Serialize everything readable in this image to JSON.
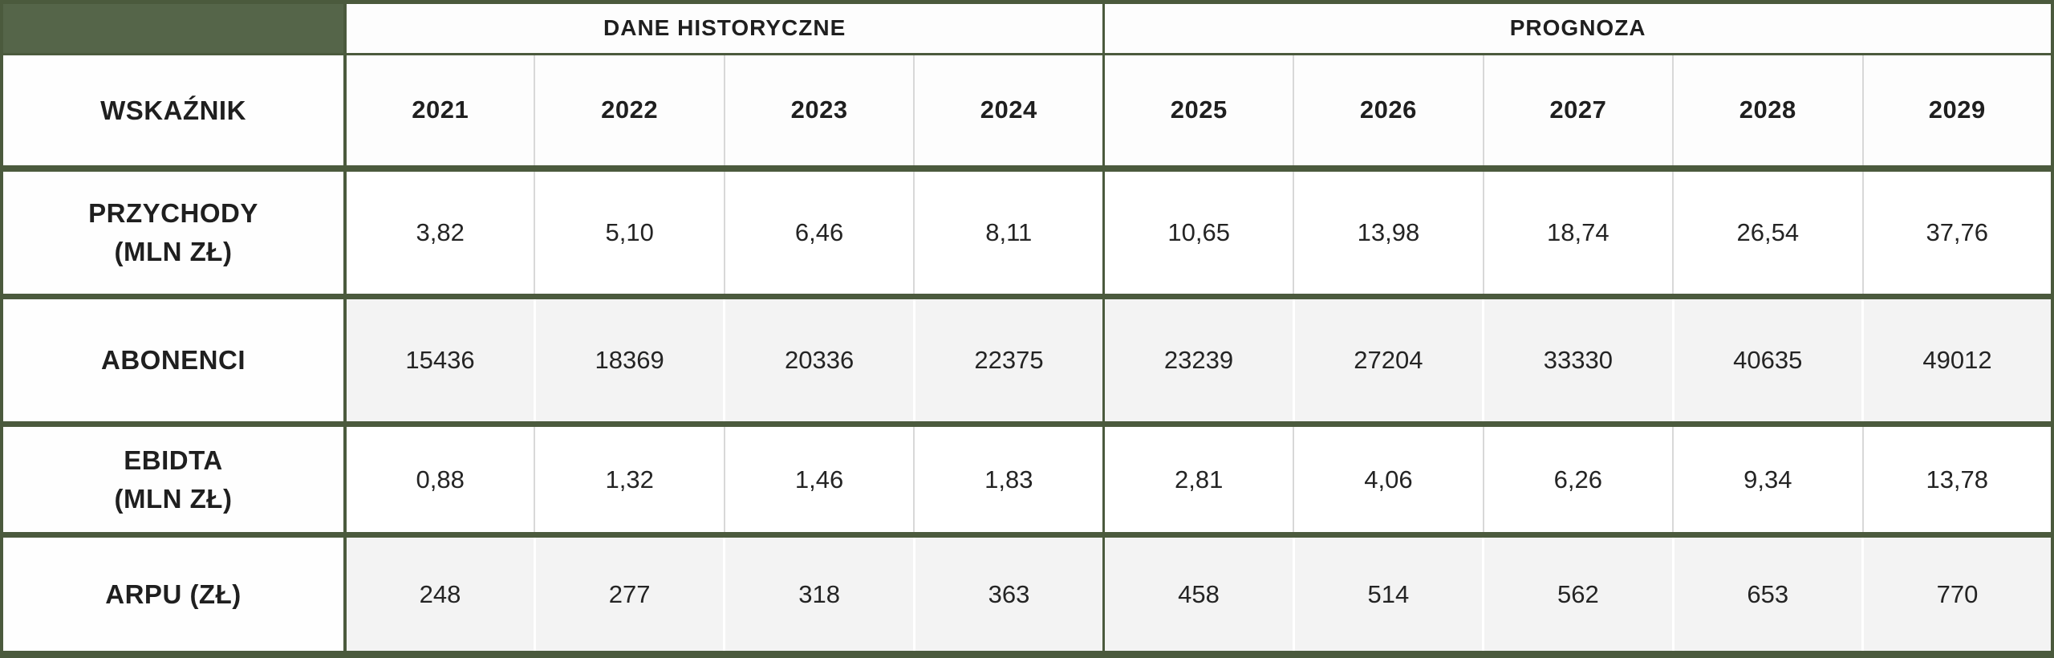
{
  "table": {
    "corner_label": "WSKAŹNIK",
    "sections": [
      {
        "label": "DANE HISTORYCZNE",
        "years": [
          "2021",
          "2022",
          "2023",
          "2024"
        ]
      },
      {
        "label": "PROGNOZA",
        "years": [
          "2025",
          "2026",
          "2027",
          "2028",
          "2029"
        ]
      }
    ],
    "rows": [
      {
        "label_lines": {
          "0": "PRZYCHODY",
          "1": "(MLN ZŁ)"
        },
        "values": [
          "3,82",
          "5,10",
          "6,46",
          "8,11",
          "10,65",
          "13,98",
          "18,74",
          "26,54",
          "37,76"
        ]
      },
      {
        "label_lines": {
          "0": "ABONENCI"
        },
        "values": [
          "15436",
          "18369",
          "20336",
          "22375",
          "23239",
          "27204",
          "33330",
          "40635",
          "49012"
        ]
      },
      {
        "label_lines": {
          "0": "EBIDTA",
          "1": "(MLN ZŁ)"
        },
        "values": [
          "0,88",
          "1,32",
          "1,46",
          "1,83",
          "2,81",
          "4,06",
          "6,26",
          "9,34",
          "13,78"
        ]
      },
      {
        "label_lines": {
          "0": "ARPU (ZŁ)"
        },
        "values": [
          "248",
          "277",
          "318",
          "363",
          "458",
          "514",
          "562",
          "653",
          "770"
        ]
      }
    ]
  },
  "colors": {
    "green_fill": "#556549",
    "green_border": "#4b5a3d",
    "gray_divider": "#d8d8d8",
    "zebra_bg": "#f3f3f3",
    "text": "#1f1f1f"
  },
  "chart_data": {
    "type": "table",
    "title": "",
    "column_groups": [
      {
        "label": "DANE HISTORYCZNE",
        "span": 4
      },
      {
        "label": "PROGNOZA",
        "span": 5
      }
    ],
    "columns": [
      "WSKAŹNIK",
      "2021",
      "2022",
      "2023",
      "2024",
      "2025",
      "2026",
      "2027",
      "2028",
      "2029"
    ],
    "rows": [
      {
        "label": "PRZYCHODY (MLN ZŁ)",
        "values": [
          3.82,
          5.1,
          6.46,
          8.11,
          10.65,
          13.98,
          18.74,
          26.54,
          37.76
        ]
      },
      {
        "label": "ABONENCI",
        "values": [
          15436,
          18369,
          20336,
          22375,
          23239,
          27204,
          33330,
          40635,
          49012
        ]
      },
      {
        "label": "EBIDTA (MLN ZŁ)",
        "values": [
          0.88,
          1.32,
          1.46,
          1.83,
          2.81,
          4.06,
          6.26,
          9.34,
          13.78
        ]
      },
      {
        "label": "ARPU (ZŁ)",
        "values": [
          248,
          277,
          318,
          363,
          458,
          514,
          562,
          653,
          770
        ]
      }
    ]
  }
}
